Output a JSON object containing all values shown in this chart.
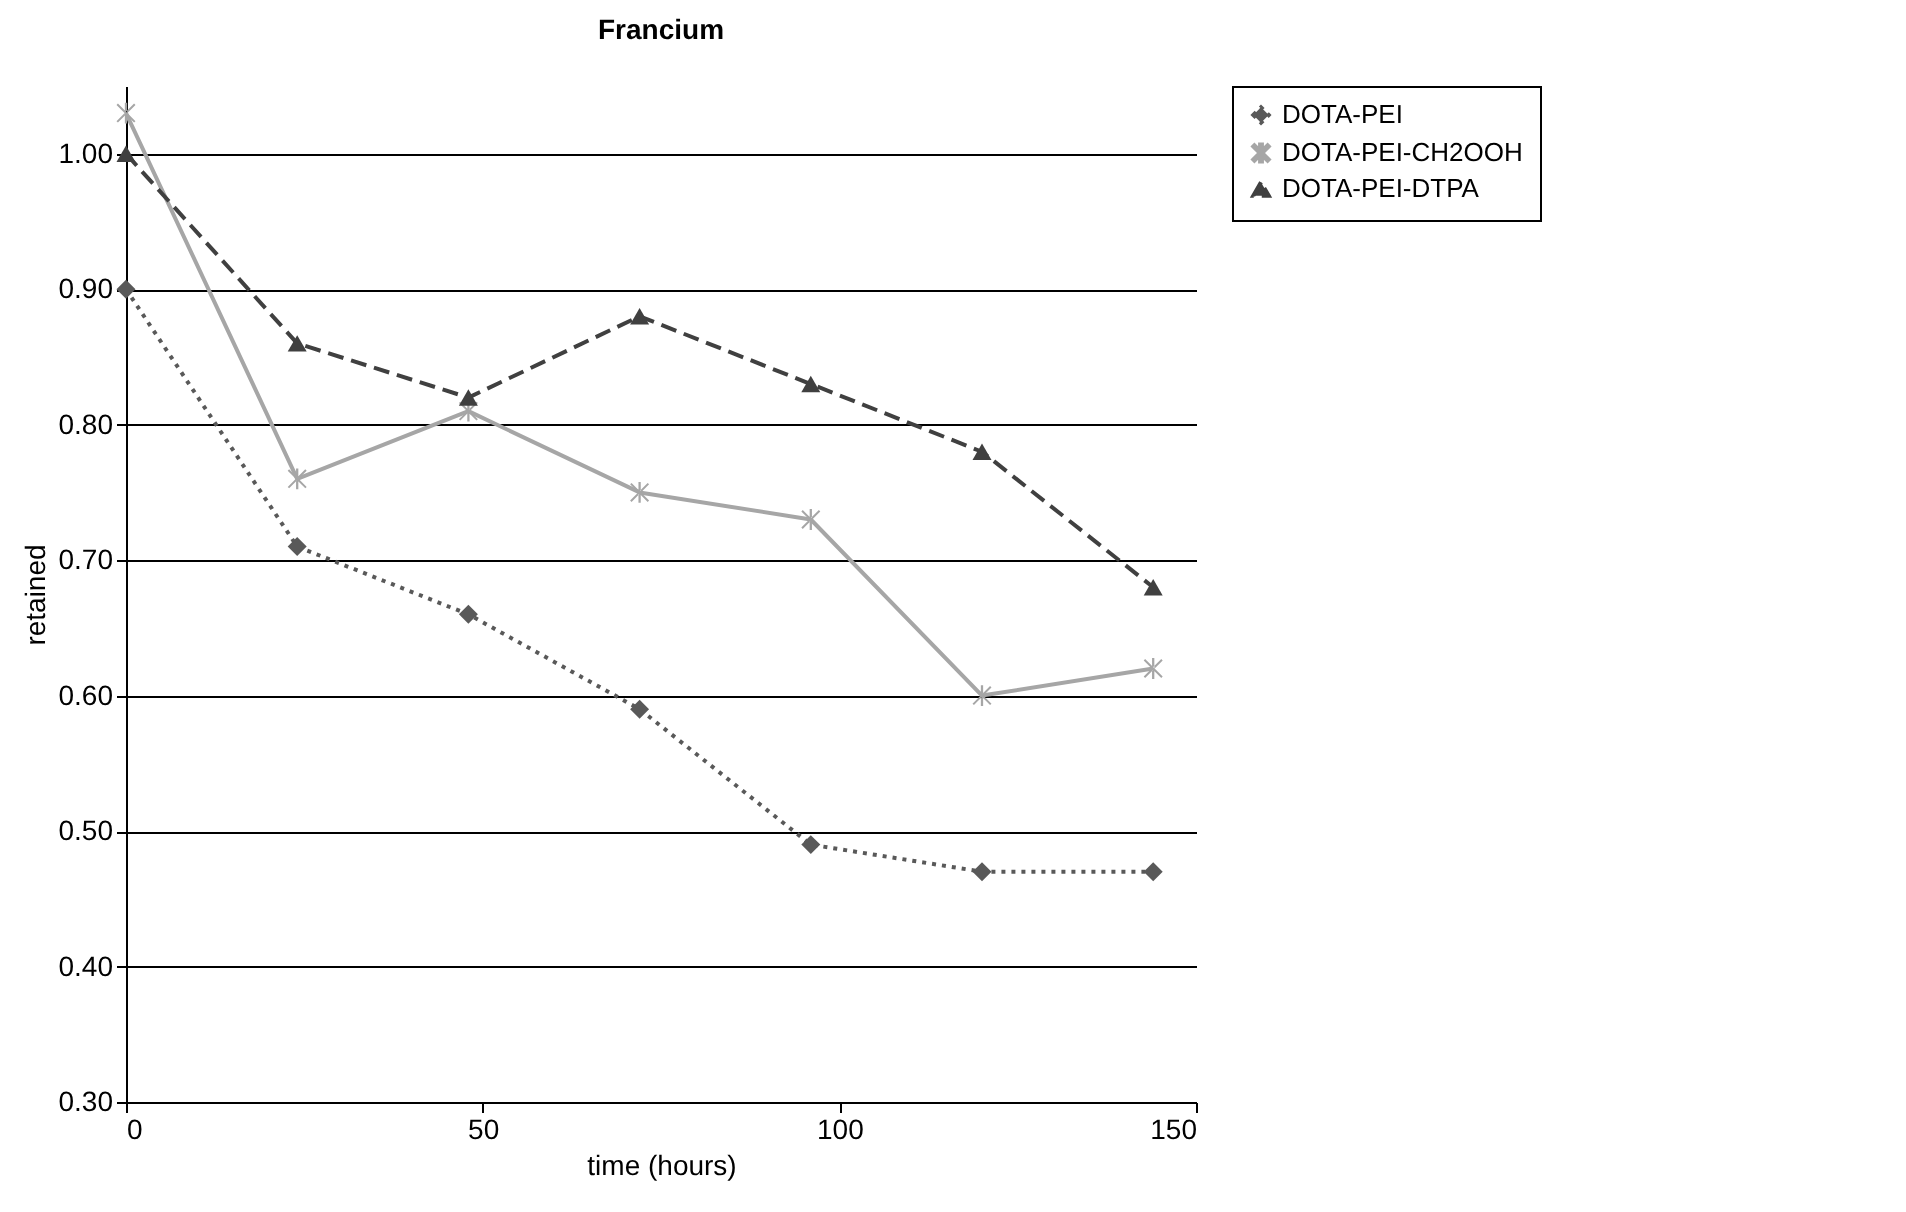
{
  "chart_data": {
    "type": "line",
    "title": "Francium",
    "xlabel": "time (hours)",
    "ylabel": "retained",
    "x": [
      0,
      24,
      48,
      72,
      96,
      120,
      144
    ],
    "series": [
      {
        "name": "DOTA-PEI",
        "color": "#595959",
        "marker": "diamond",
        "line_style": "dotted",
        "values": [
          0.9,
          0.71,
          0.66,
          0.59,
          0.49,
          0.47,
          0.47
        ]
      },
      {
        "name": "DOTA-PEI-CH2OOH",
        "color": "#a6a6a6",
        "marker": "cross",
        "line_style": "solid",
        "values": [
          1.03,
          0.76,
          0.81,
          0.75,
          0.73,
          0.6,
          0.62
        ]
      },
      {
        "name": "DOTA-PEI-DTPA",
        "color": "#404040",
        "marker": "triangle",
        "line_style": "dashed",
        "values": [
          1.0,
          0.86,
          0.82,
          0.88,
          0.83,
          0.78,
          0.68
        ]
      }
    ],
    "xlim": [
      0,
      150
    ],
    "xticks": [
      0,
      50,
      100,
      150
    ],
    "ylim": [
      0.3,
      1.05
    ],
    "yticks": [
      {
        "value": 0.3,
        "label": "0.30"
      },
      {
        "value": 0.4,
        "label": "0.40"
      },
      {
        "value": 0.5,
        "label": "0.50"
      },
      {
        "value": 0.6,
        "label": "0.60"
      },
      {
        "value": 0.7,
        "label": "0.70"
      },
      {
        "value": 0.8,
        "label": "0.80"
      },
      {
        "value": 0.9,
        "label": "0.90"
      },
      {
        "value": 1.0,
        "label": "1.00"
      }
    ],
    "grid": "y",
    "legend": "right"
  }
}
